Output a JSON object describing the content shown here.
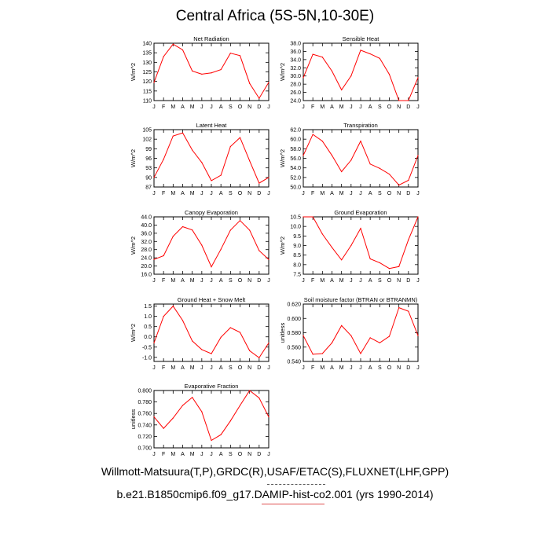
{
  "title": "Central Africa (5S-5N,10-30E)",
  "footer": {
    "line1": "Willmott-Matsuura(T,P),GRDC(R),USAF/ETAC(S),FLUXNET(LHF,GPP)",
    "line2": "b.e21.B1850cmip6.f09_g17.DAMIP-hist-co2.001 (yrs 1990-2014)"
  },
  "colors": {
    "series": "#ff0000",
    "axis": "#000000"
  },
  "chart_data": [
    {
      "type": "line",
      "title": "Net Radiation",
      "ylabel": "W/m^2",
      "x": [
        "J",
        "F",
        "M",
        "A",
        "M",
        "J",
        "J",
        "A",
        "S",
        "O",
        "N",
        "D",
        "J"
      ],
      "values": [
        119.5,
        133,
        139.5,
        136.5,
        125.5,
        123.8,
        124.5,
        126.2,
        134.8,
        133.5,
        119,
        111.2,
        119.5
      ],
      "ylim": [
        110,
        140
      ],
      "yticks": [
        "110",
        "115",
        "120",
        "125",
        "130",
        "135",
        "140"
      ]
    },
    {
      "type": "line",
      "title": "Sensible Heat",
      "ylabel": "W/m^2",
      "x": [
        "J",
        "F",
        "M",
        "A",
        "M",
        "J",
        "J",
        "A",
        "S",
        "O",
        "N",
        "D",
        "J"
      ],
      "values": [
        29.6,
        35.3,
        34.6,
        31.2,
        26.6,
        30,
        36.3,
        35.4,
        34.3,
        30.4,
        24,
        24,
        29.6
      ],
      "ylim": [
        24,
        38
      ],
      "yticks": [
        "24.0",
        "26.0",
        "28.0",
        "30.0",
        "32.0",
        "34.0",
        "36.0",
        "38.0"
      ]
    },
    {
      "type": "line",
      "title": "Latent Heat",
      "ylabel": "W/m^2",
      "x": [
        "J",
        "F",
        "M",
        "A",
        "M",
        "J",
        "J",
        "A",
        "S",
        "O",
        "N",
        "D",
        "J"
      ],
      "values": [
        90,
        95.7,
        103,
        104,
        98.6,
        94.7,
        89,
        90.7,
        99.7,
        102.5,
        95.2,
        88.2,
        90
      ],
      "ylim": [
        87,
        105
      ],
      "yticks": [
        "87",
        "90",
        "93",
        "96",
        "99",
        "102",
        "105"
      ]
    },
    {
      "type": "line",
      "title": "Transpiration",
      "ylabel": "W/m^2",
      "x": [
        "J",
        "F",
        "M",
        "A",
        "M",
        "J",
        "J",
        "A",
        "S",
        "O",
        "N",
        "D",
        "J"
      ],
      "values": [
        56.6,
        61,
        59.6,
        56.6,
        53.2,
        55.6,
        59.6,
        54.8,
        53.9,
        52.7,
        50.4,
        51.4,
        56.6
      ],
      "ylim": [
        50,
        62
      ],
      "yticks": [
        "50.0",
        "52.0",
        "54.0",
        "56.0",
        "58.0",
        "60.0",
        "62.0"
      ]
    },
    {
      "type": "line",
      "title": "Canopy Evaporation",
      "ylabel": "W/m^2",
      "x": [
        "J",
        "F",
        "M",
        "A",
        "M",
        "J",
        "J",
        "A",
        "S",
        "O",
        "N",
        "D",
        "J"
      ],
      "values": [
        23.2,
        25,
        34.5,
        39.2,
        37.6,
        30.2,
        19.6,
        28.2,
        37.5,
        42.2,
        37.5,
        27.5,
        23.2
      ],
      "ylim": [
        16,
        44
      ],
      "yticks": [
        "16.0",
        "20.0",
        "24.0",
        "28.0",
        "32.0",
        "36.0",
        "40.0",
        "44.0"
      ]
    },
    {
      "type": "line",
      "title": "Ground Evaporation",
      "ylabel": "W/m^2",
      "x": [
        "J",
        "F",
        "M",
        "A",
        "M",
        "J",
        "J",
        "A",
        "S",
        "O",
        "N",
        "D",
        "J"
      ],
      "values": [
        10.5,
        10.5,
        9.6,
        8.9,
        8.25,
        9,
        9.9,
        8.3,
        8.1,
        7.8,
        7.9,
        9.3,
        10.5
      ],
      "ylim": [
        7.5,
        10.5
      ],
      "yticks": [
        "7.5",
        "8.0",
        "8.5",
        "9.0",
        "9.5",
        "10.0",
        "10.5"
      ]
    },
    {
      "type": "line",
      "title": "Ground Heat + Snow Melt",
      "ylabel": "W/m^2",
      "x": [
        "J",
        "F",
        "M",
        "A",
        "M",
        "J",
        "J",
        "A",
        "S",
        "O",
        "N",
        "D",
        "J"
      ],
      "values": [
        -0.3,
        1,
        1.5,
        0.8,
        -0.2,
        -0.62,
        -0.82,
        -0.02,
        0.45,
        0.22,
        -0.68,
        -1.02,
        -0.3
      ],
      "ylim": [
        -1.2,
        1.6
      ],
      "yticks": [
        "-1.0",
        "-0.5",
        "0.0",
        "0.5",
        "1.0",
        "1.5"
      ]
    },
    {
      "type": "line",
      "title": "Soil moisture factor (BTRAN or BTRANMN)",
      "ylabel": "unitless",
      "x": [
        "J",
        "F",
        "M",
        "A",
        "M",
        "J",
        "J",
        "A",
        "S",
        "O",
        "N",
        "D",
        "J"
      ],
      "values": [
        0.576,
        0.55,
        0.551,
        0.566,
        0.59,
        0.576,
        0.551,
        0.573,
        0.566,
        0.575,
        0.615,
        0.61,
        0.576
      ],
      "ylim": [
        0.54,
        0.62
      ],
      "yticks": [
        "0.540",
        "0.560",
        "0.580",
        "0.600",
        "0.620"
      ]
    },
    {
      "type": "line",
      "title": "Evaporative Fraction",
      "ylabel": "unitless",
      "x": [
        "J",
        "F",
        "M",
        "A",
        "M",
        "J",
        "J",
        "A",
        "S",
        "O",
        "N",
        "D",
        "J"
      ],
      "values": [
        0.754,
        0.734,
        0.752,
        0.774,
        0.788,
        0.763,
        0.713,
        0.723,
        0.747,
        0.774,
        0.8,
        0.787,
        0.754
      ],
      "ylim": [
        0.7,
        0.8
      ],
      "yticks": [
        "0.700",
        "0.720",
        "0.740",
        "0.760",
        "0.780",
        "0.800"
      ]
    }
  ]
}
